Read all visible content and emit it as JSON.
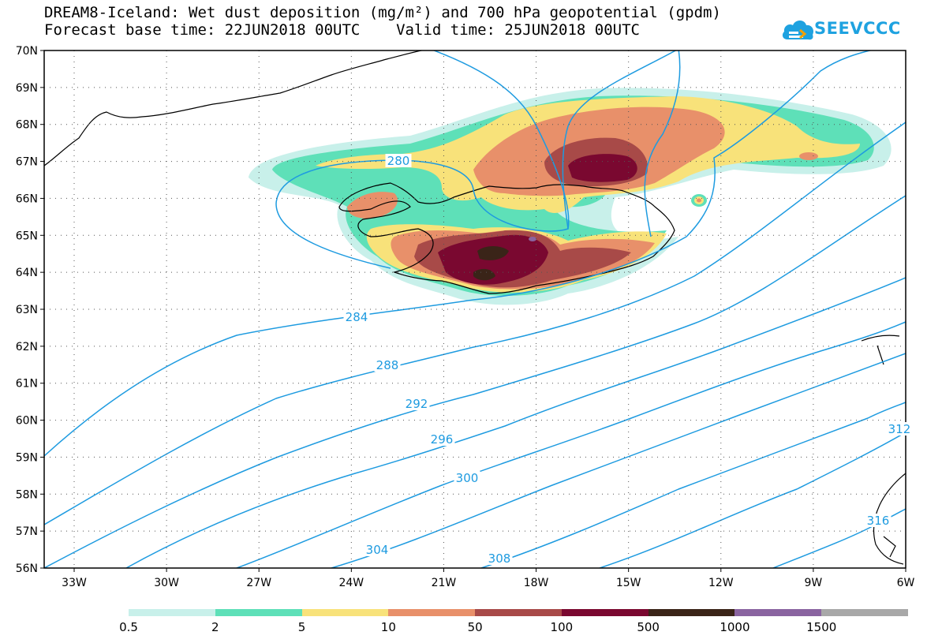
{
  "header": {
    "title_line1": "DREAM8-Iceland: Wet dust deposition (mg/m²) and 700 hPa geopotential (gpdm)",
    "title_line2": "Forecast base time: 22JUN2018 00UTC    Valid time: 25JUN2018 00UTC"
  },
  "logo": {
    "text": "SEEVCCC",
    "icon": "cloud-icon",
    "color": "#1ea2e0"
  },
  "map": {
    "lat_labels": [
      "70N",
      "69N",
      "68N",
      "67N",
      "66N",
      "65N",
      "64N",
      "63N",
      "62N",
      "61N",
      "60N",
      "59N",
      "58N",
      "57N",
      "56N"
    ],
    "lon_labels": [
      "33W",
      "30W",
      "27W",
      "24W",
      "21W",
      "18W",
      "15W",
      "12W",
      "9W",
      "6W"
    ],
    "contour_labels": [
      "280",
      "284",
      "288",
      "292",
      "296",
      "300",
      "304",
      "308",
      "312",
      "316"
    ],
    "contour_color": "#1e9be0"
  },
  "legend": {
    "thresholds": [
      "0.5",
      "2",
      "5",
      "10",
      "50",
      "100",
      "500",
      "1000",
      "1500"
    ],
    "colors": [
      "#c8f0ea",
      "#5ee0b8",
      "#f8e27a",
      "#e8906a",
      "#a84a48",
      "#7a0830",
      "#3a2418",
      "#8a64a0",
      "#a8a8a8"
    ]
  }
}
